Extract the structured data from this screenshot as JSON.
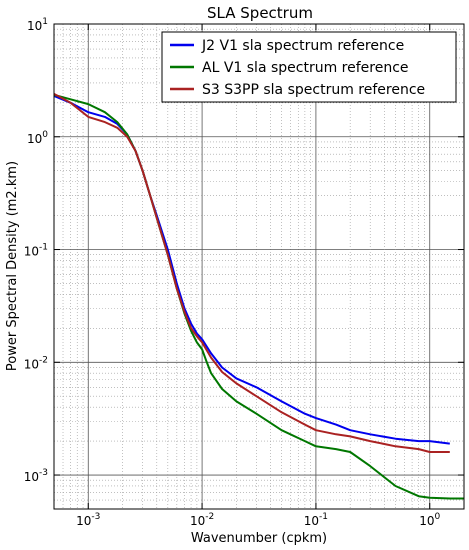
{
  "chart_data": {
    "type": "line",
    "title": "SLA Spectrum",
    "xlabel": "Wavenumber (cpkm)",
    "ylabel": "Power Spectral Density (m2.km)",
    "xscale": "log",
    "yscale": "log",
    "xlim": [
      0.0005,
      2.0
    ],
    "ylim": [
      0.0005,
      10
    ],
    "grid": true,
    "legend_position": "top-right",
    "x_ticks": [
      {
        "value": 0.001,
        "base": "10",
        "exp": "-3"
      },
      {
        "value": 0.01,
        "base": "10",
        "exp": "-2"
      },
      {
        "value": 0.1,
        "base": "10",
        "exp": "-1"
      },
      {
        "value": 1,
        "base": "10",
        "exp": "0"
      }
    ],
    "y_ticks": [
      {
        "value": 0.001,
        "base": "10",
        "exp": "-3"
      },
      {
        "value": 0.01,
        "base": "10",
        "exp": "-2"
      },
      {
        "value": 0.1,
        "base": "10",
        "exp": "-1"
      },
      {
        "value": 1,
        "base": "10",
        "exp": "0"
      },
      {
        "value": 10,
        "base": "10",
        "exp": "1"
      }
    ],
    "series": [
      {
        "name": "J2 V1 sla spectrum reference",
        "color": "#0000ee",
        "points": [
          [
            0.0005,
            2.3
          ],
          [
            0.0007,
            2.0
          ],
          [
            0.001,
            1.65
          ],
          [
            0.0014,
            1.5
          ],
          [
            0.0018,
            1.3
          ],
          [
            0.0022,
            1.05
          ],
          [
            0.0026,
            0.75
          ],
          [
            0.003,
            0.5
          ],
          [
            0.0035,
            0.3
          ],
          [
            0.004,
            0.2
          ],
          [
            0.005,
            0.1
          ],
          [
            0.006,
            0.05
          ],
          [
            0.007,
            0.03
          ],
          [
            0.008,
            0.022
          ],
          [
            0.009,
            0.018
          ],
          [
            0.01,
            0.016
          ],
          [
            0.012,
            0.012
          ],
          [
            0.015,
            0.009
          ],
          [
            0.02,
            0.0072
          ],
          [
            0.03,
            0.006
          ],
          [
            0.05,
            0.0045
          ],
          [
            0.08,
            0.0035
          ],
          [
            0.1,
            0.0032
          ],
          [
            0.15,
            0.0028
          ],
          [
            0.2,
            0.0025
          ],
          [
            0.3,
            0.0023
          ],
          [
            0.5,
            0.0021
          ],
          [
            0.8,
            0.002
          ],
          [
            1.0,
            0.002
          ],
          [
            1.5,
            0.0019
          ]
        ]
      },
      {
        "name": "AL V1 sla spectrum reference",
        "color": "#007700",
        "points": [
          [
            0.0005,
            2.35
          ],
          [
            0.0007,
            2.15
          ],
          [
            0.001,
            1.95
          ],
          [
            0.0014,
            1.65
          ],
          [
            0.0018,
            1.35
          ],
          [
            0.0022,
            1.05
          ],
          [
            0.0026,
            0.75
          ],
          [
            0.003,
            0.5
          ],
          [
            0.0035,
            0.3
          ],
          [
            0.004,
            0.19
          ],
          [
            0.005,
            0.09
          ],
          [
            0.006,
            0.045
          ],
          [
            0.007,
            0.027
          ],
          [
            0.008,
            0.019
          ],
          [
            0.009,
            0.015
          ],
          [
            0.01,
            0.013
          ],
          [
            0.011,
            0.01
          ],
          [
            0.012,
            0.008
          ],
          [
            0.015,
            0.0058
          ],
          [
            0.02,
            0.0045
          ],
          [
            0.03,
            0.0035
          ],
          [
            0.05,
            0.0025
          ],
          [
            0.08,
            0.002
          ],
          [
            0.1,
            0.0018
          ],
          [
            0.15,
            0.0017
          ],
          [
            0.2,
            0.0016
          ],
          [
            0.3,
            0.0012
          ],
          [
            0.5,
            0.0008
          ],
          [
            0.8,
            0.00065
          ],
          [
            1.0,
            0.00063
          ],
          [
            1.5,
            0.00062
          ],
          [
            2.0,
            0.00062
          ]
        ]
      },
      {
        "name": "S3 S3PP sla spectrum reference",
        "color": "#aa2222",
        "points": [
          [
            0.0005,
            2.4
          ],
          [
            0.0007,
            2.0
          ],
          [
            0.001,
            1.5
          ],
          [
            0.0014,
            1.35
          ],
          [
            0.0018,
            1.2
          ],
          [
            0.0022,
            1.0
          ],
          [
            0.0026,
            0.75
          ],
          [
            0.003,
            0.5
          ],
          [
            0.0035,
            0.3
          ],
          [
            0.004,
            0.19
          ],
          [
            0.005,
            0.09
          ],
          [
            0.006,
            0.045
          ],
          [
            0.007,
            0.028
          ],
          [
            0.008,
            0.02
          ],
          [
            0.009,
            0.017
          ],
          [
            0.01,
            0.015
          ],
          [
            0.012,
            0.011
          ],
          [
            0.015,
            0.0082
          ],
          [
            0.02,
            0.0065
          ],
          [
            0.03,
            0.005
          ],
          [
            0.05,
            0.0036
          ],
          [
            0.08,
            0.0028
          ],
          [
            0.1,
            0.0025
          ],
          [
            0.15,
            0.0023
          ],
          [
            0.2,
            0.0022
          ],
          [
            0.3,
            0.002
          ],
          [
            0.5,
            0.0018
          ],
          [
            0.8,
            0.0017
          ],
          [
            1.0,
            0.0016
          ],
          [
            1.5,
            0.0016
          ]
        ]
      }
    ]
  }
}
